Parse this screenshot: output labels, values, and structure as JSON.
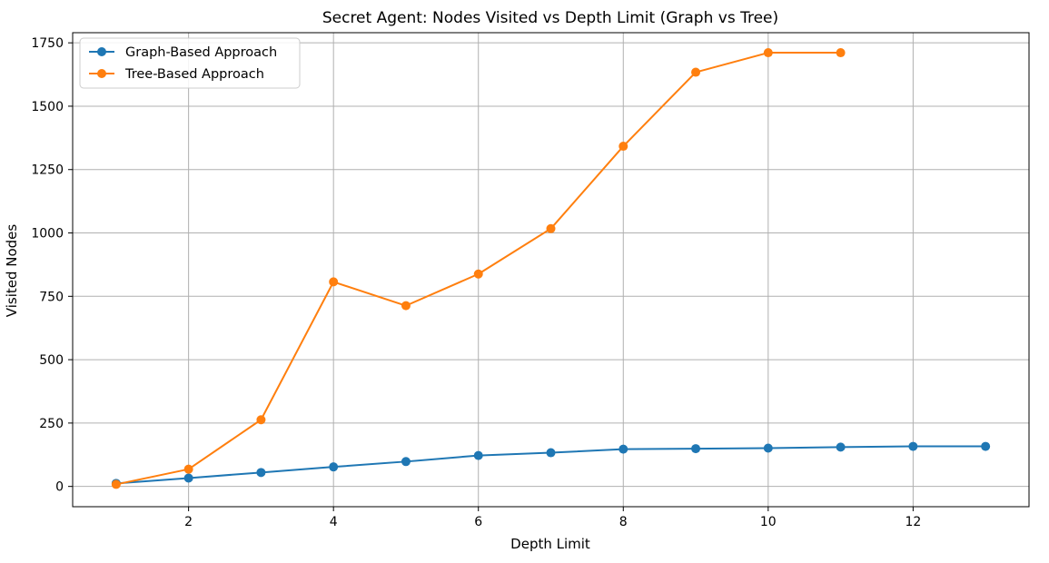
{
  "chart_data": {
    "type": "line",
    "title": "Secret Agent: Nodes Visited vs Depth Limit (Graph vs Tree)",
    "xlabel": "Depth Limit",
    "ylabel": "Visited Nodes",
    "xlim": [
      0.4,
      13.6
    ],
    "ylim": [
      -80,
      1790
    ],
    "xticks": [
      2,
      4,
      6,
      8,
      10,
      12
    ],
    "yticks": [
      0,
      250,
      500,
      750,
      1000,
      1250,
      1500,
      1750
    ],
    "grid": true,
    "legend_position": "top-left",
    "series": [
      {
        "name": "Graph-Based Approach",
        "color": "#1f77b4",
        "marker": "circle",
        "x": [
          1,
          2,
          3,
          4,
          5,
          6,
          7,
          8,
          9,
          10,
          11,
          12,
          13
        ],
        "y": [
          12,
          33,
          55,
          77,
          98,
          122,
          133,
          147,
          149,
          151,
          155,
          158,
          158
        ]
      },
      {
        "name": "Tree-Based Approach",
        "color": "#ff7f0e",
        "marker": "circle",
        "x": [
          1,
          2,
          3,
          4,
          5,
          6,
          7,
          8,
          9,
          10,
          11
        ],
        "y": [
          8,
          68,
          263,
          807,
          713,
          838,
          1017,
          1342,
          1634,
          1711,
          1711
        ]
      }
    ]
  }
}
